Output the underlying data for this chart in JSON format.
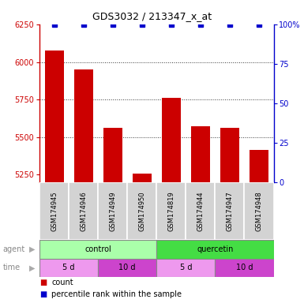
{
  "title": "GDS3032 / 213347_x_at",
  "samples": [
    "GSM174945",
    "GSM174946",
    "GSM174949",
    "GSM174950",
    "GSM174819",
    "GSM174944",
    "GSM174947",
    "GSM174948"
  ],
  "counts": [
    6075,
    5950,
    5560,
    5255,
    5760,
    5570,
    5560,
    5415
  ],
  "percentile_ranks": [
    100,
    100,
    100,
    100,
    100,
    100,
    100,
    100
  ],
  "ylim_left": [
    5200,
    6250
  ],
  "ylim_right": [
    0,
    100
  ],
  "yticks_left": [
    5250,
    5500,
    5750,
    6000,
    6250
  ],
  "yticks_right": [
    0,
    25,
    50,
    75,
    100
  ],
  "bar_color": "#cc0000",
  "dot_color": "#0000cc",
  "bar_bottom": 5200,
  "agent_groups": [
    {
      "label": "control",
      "start": 0,
      "end": 4,
      "color": "#aaffaa"
    },
    {
      "label": "quercetin",
      "start": 4,
      "end": 8,
      "color": "#44dd44"
    }
  ],
  "time_groups": [
    {
      "label": "5 d",
      "start": 0,
      "end": 2,
      "color": "#ee99ee"
    },
    {
      "label": "10 d",
      "start": 2,
      "end": 4,
      "color": "#cc44cc"
    },
    {
      "label": "5 d",
      "start": 4,
      "end": 6,
      "color": "#ee99ee"
    },
    {
      "label": "10 d",
      "start": 6,
      "end": 8,
      "color": "#cc44cc"
    }
  ],
  "left_axis_color": "#cc0000",
  "right_axis_color": "#0000cc",
  "grid_color": "#333333",
  "grid_lines": [
    5500,
    5750,
    6000
  ],
  "background_color": "#ffffff",
  "title_fontsize": 9,
  "tick_fontsize": 7,
  "sample_fontsize": 6,
  "label_fontsize": 7,
  "row_fontsize": 7,
  "legend_fontsize": 7
}
